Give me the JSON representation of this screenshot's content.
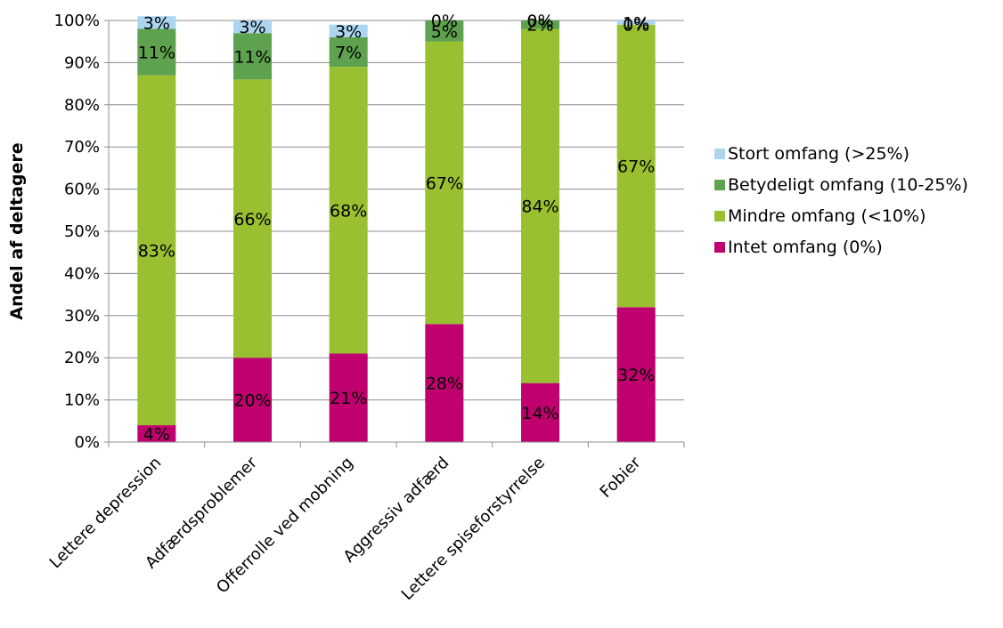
{
  "chart_data": {
    "type": "bar",
    "stacked": true,
    "ylabel": "Andel af deltagere",
    "ylim": [
      0,
      100
    ],
    "y_ticks": [
      "0%",
      "10%",
      "20%",
      "30%",
      "40%",
      "50%",
      "60%",
      "70%",
      "80%",
      "90%",
      "100%"
    ],
    "grid": true,
    "legend_position": "right",
    "categories": [
      "Lettere depression",
      "Adfærdsproblemer",
      "Offerrolle ved mobning",
      "Aggressiv adfærd",
      "Lettere spiseforstyrrelse",
      "Fobier"
    ],
    "series": [
      {
        "name": "Intet omfang (0%)",
        "color": "#c0006e",
        "values": [
          4,
          20,
          21,
          28,
          14,
          32
        ],
        "labels": [
          "4%",
          "20%",
          "21%",
          "28%",
          "14%",
          "32%"
        ]
      },
      {
        "name": "Mindre omfang (<10%)",
        "color": "#99c031",
        "values": [
          83,
          66,
          68,
          67,
          84,
          67
        ],
        "labels": [
          "83%",
          "66%",
          "68%",
          "67%",
          "84%",
          "67%"
        ]
      },
      {
        "name": "Betydeligt omfang (10-25%)",
        "color": "#5ea14e",
        "values": [
          11,
          11,
          7,
          5,
          2,
          0
        ],
        "labels": [
          "11%",
          "11%",
          "7%",
          "5%",
          "2%",
          "0%"
        ]
      },
      {
        "name": "Stort omfang (>25%)",
        "color": "#acd5f0",
        "values": [
          3,
          3,
          3,
          0,
          0,
          1
        ],
        "labels": [
          "3%",
          "3%",
          "3%",
          "0%",
          "0%",
          "1%"
        ]
      }
    ],
    "legend_order": [
      "Stort omfang (>25%)",
      "Betydeligt omfang (10-25%)",
      "Mindre omfang (<10%)",
      "Intet omfang (0%)"
    ]
  }
}
